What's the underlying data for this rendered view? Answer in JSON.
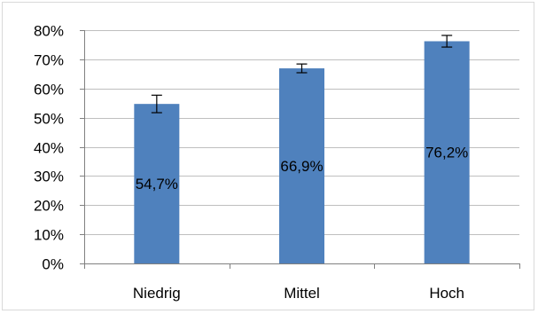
{
  "chart_data": {
    "type": "bar",
    "title": "",
    "xlabel": "",
    "ylabel": "",
    "categories": [
      "Niedrig",
      "Mittel",
      "Hoch"
    ],
    "values": [
      54.7,
      66.9,
      76.2
    ],
    "error": [
      3,
      1.5,
      2
    ],
    "data_labels": [
      "54,7%",
      "66,9%",
      "76,2%"
    ],
    "ylim": [
      0,
      80
    ],
    "yticks": [
      0,
      10,
      20,
      30,
      40,
      50,
      60,
      70,
      80
    ],
    "ytick_labels": [
      "0%",
      "10%",
      "20%",
      "30%",
      "40%",
      "50%",
      "60%",
      "70%",
      "80%"
    ],
    "grid": true,
    "legend": "none",
    "bar_color": "#4f81bd",
    "grid_color": "#bfbfbf",
    "axis_color": "#808080"
  }
}
